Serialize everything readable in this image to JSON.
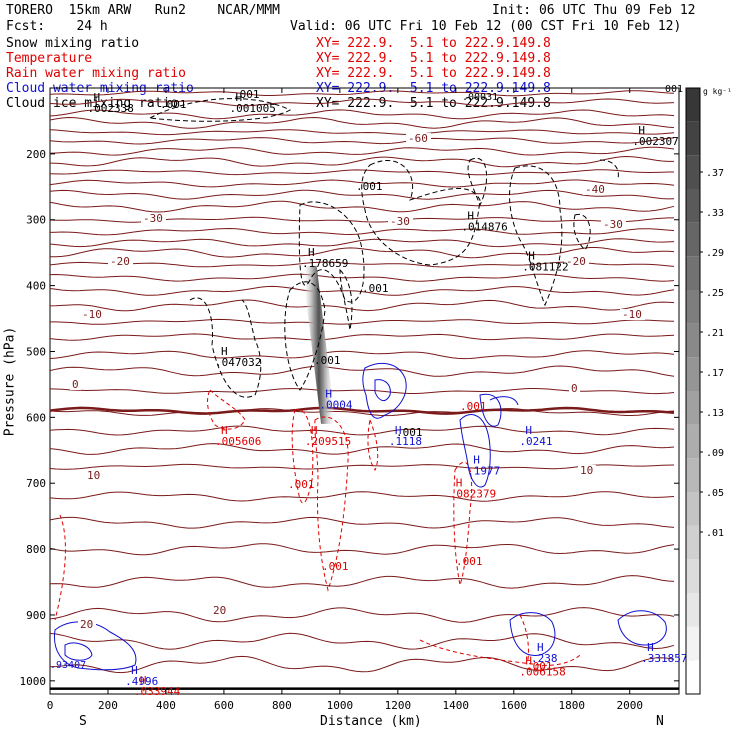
{
  "header": {
    "title_left": "TORERO  15km ARW   Run2    NCAR/MMM",
    "init": "Init: 06 UTC Thu 09 Feb 12",
    "fcst": "Fcst:    24 h",
    "valid": "Valid: 06 UTC Fri 10 Feb 12 (00 CST Fri 10 Feb 12)"
  },
  "legend": [
    {
      "name": "Snow mixing ratio",
      "xy": "",
      "color": "#000000"
    },
    {
      "name": "Temperature",
      "xy": "XY= 222.9.  5.1 to 222.9.149.8",
      "color": "#e00000"
    },
    {
      "name": "Rain water mixing ratio",
      "xy": "XY= 222.9.  5.1 to 222.9.149.8",
      "color": "#e00000"
    },
    {
      "name": "Cloud water mixing ratio",
      "xy": "XY= 222.9.  5.1 to 222.9.149.8",
      "color": "#1010d0"
    },
    {
      "name": "Cloud ice mixing ratio",
      "xy": "XY= 222.9.  5.1 to 222.9.149.8",
      "color": "#000000"
    }
  ],
  "snow_xy": "XY= 222.9.  5.1 to 222.9.149.8",
  "colorbar": {
    "unit": "g kg⁻¹",
    "labels": [
      ".37",
      ".33",
      ".29",
      ".25",
      ".21",
      ".17",
      ".13",
      ".09",
      ".05",
      ".01"
    ]
  },
  "chart_data": {
    "type": "contour",
    "xlabel": "Distance (km)",
    "ylabel": "Pressure (hPa)",
    "xlim": [
      0,
      2170
    ],
    "ylim": [
      1020,
      100
    ],
    "x_ticks": [
      "0",
      "200",
      "400",
      "600",
      "800",
      "1000",
      "1200",
      "1400",
      "1600",
      "1800",
      "2000"
    ],
    "y_ticks": [
      "200",
      "300",
      "400",
      "500",
      "600",
      "700",
      "800",
      "900",
      "1000"
    ],
    "x_ends": {
      "left": "S",
      "right": "N"
    },
    "temperature_labels": [
      "-60",
      "-40",
      "-30",
      "-30",
      "-30",
      "-20",
      "-20",
      "-10",
      "-10",
      "0",
      "0",
      "10",
      "10",
      "20",
      "20"
    ],
    "maxima": [
      {
        "label": "H",
        "value": ".002338",
        "x": 150,
        "p": 120,
        "color": "#000000"
      },
      {
        "label": "H",
        "value": ".001005",
        "x": 640,
        "p": 120,
        "color": "#000000"
      },
      {
        "label": "H",
        "value": ".002307",
        "x": 2030,
        "p": 170,
        "color": "#000000"
      },
      {
        "label": "H",
        "value": ".014876",
        "x": 1440,
        "p": 300,
        "color": "#000000"
      },
      {
        "label": "H",
        "value": ".178659",
        "x": 890,
        "p": 355,
        "color": "#000000"
      },
      {
        "label": "H",
        "value": ".081122",
        "x": 1650,
        "p": 360,
        "color": "#000000"
      },
      {
        "label": "H",
        "value": ".047032",
        "x": 590,
        "p": 505,
        "color": "#000000"
      },
      {
        "label": "H",
        "value": ".0004",
        "x": 950,
        "p": 570,
        "color": "#1010d0"
      },
      {
        "label": "H",
        "value": ".005606",
        "x": 590,
        "p": 625,
        "color": "#e00000"
      },
      {
        "label": "H",
        "value": ".209515",
        "x": 900,
        "p": 625,
        "color": "#e00000"
      },
      {
        "label": "H",
        "value": ".1118",
        "x": 1190,
        "p": 625,
        "color": "#1010d0"
      },
      {
        "label": "H",
        "value": ".0241",
        "x": 1640,
        "p": 625,
        "color": "#1010d0"
      },
      {
        "label": "H",
        "value": ".1977",
        "x": 1460,
        "p": 670,
        "color": "#1010d0"
      },
      {
        "label": "H",
        "value": ".082379",
        "x": 1400,
        "p": 705,
        "color": "#e00000"
      },
      {
        "label": "H",
        "value": ".4996",
        "x": 280,
        "p": 990,
        "color": "#1010d0"
      },
      {
        "label": "H",
        "value": ".033944",
        "x": 310,
        "p": 1005,
        "color": "#e00000"
      },
      {
        "label": "H",
        "value": ".238",
        "x": 1680,
        "p": 955,
        "color": "#1010d0"
      },
      {
        "label": "H",
        "value": ".006158",
        "x": 1640,
        "p": 975,
        "color": "#e00000"
      },
      {
        "label": "H",
        "value": ".3318573",
        "x": 2060,
        "p": 955,
        "color": "#1010d0"
      }
    ],
    "contour_labels": [
      ".001",
      ".001",
      ".001",
      ".001",
      ".001",
      ".001",
      ".001",
      ".001",
      ".001",
      ".001",
      ".001"
    ],
    "small_labels": [
      ".00031",
      "001",
      ".93407"
    ]
  }
}
